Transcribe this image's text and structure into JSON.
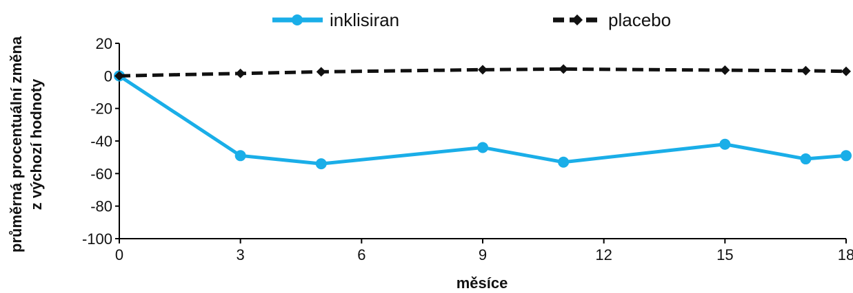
{
  "chart_data": {
    "type": "line",
    "xlabel": "měsíce",
    "ylabel_lines": [
      "průměrná procentuální změna",
      "z výchozí hodnoty"
    ],
    "xlim": [
      0,
      18
    ],
    "ylim": [
      -100,
      20
    ],
    "xticks": [
      0,
      3,
      6,
      9,
      12,
      15,
      18
    ],
    "yticks": [
      20,
      0,
      -20,
      -40,
      -60,
      -80,
      -100
    ],
    "grid": false,
    "legend_position": "top",
    "series": [
      {
        "name": "inklisiran",
        "color": "#1aaee8",
        "line_style": "solid",
        "marker": "circle",
        "x": [
          0,
          3,
          5,
          9,
          11,
          15,
          17,
          18
        ],
        "y": [
          0,
          -49,
          -54,
          -44,
          -53,
          -42,
          -51,
          -49
        ]
      },
      {
        "name": "placebo",
        "color": "#111111",
        "line_style": "dashed",
        "marker": "diamond",
        "x": [
          0,
          3,
          5,
          9,
          11,
          15,
          17,
          18
        ],
        "y": [
          0,
          1.5,
          2.5,
          3.8,
          4.2,
          3.5,
          3.2,
          2.8
        ]
      }
    ]
  }
}
